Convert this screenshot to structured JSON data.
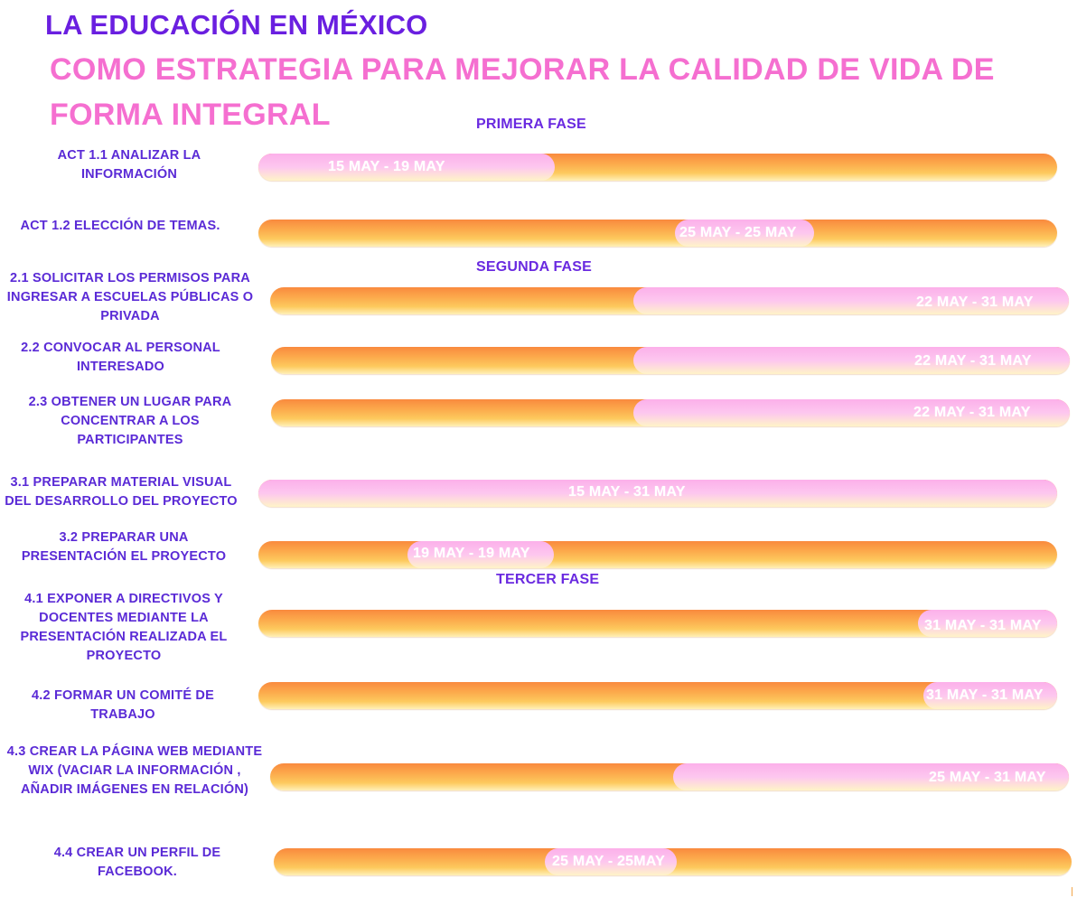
{
  "title": "LA EDUCACIÓN EN MÉXICO",
  "subtitle": "COMO ESTRATEGIA PARA MEJORAR LA CALIDAD DE VIDA DE FORMA INTEGRAL",
  "phases": {
    "first": "PRIMERA FASE",
    "second": "SEGUNDA FASE",
    "third": "TERCER FASE"
  },
  "colors": {
    "title": "#6a1fe0",
    "subtitle": "#f56fd0",
    "bar_orange": "#fcab4c",
    "bar_pink": "#fcb0ea"
  },
  "activities": [
    {
      "label": "ACT 1.1 ANALIZAR LA INFORMACIÓN",
      "dates": "15 MAY - 19 MAY",
      "start": "15 MAY",
      "end": "19 MAY"
    },
    {
      "label": "ACT 1.2 ELECCIÓN DE TEMAS.",
      "dates": "25 MAY - 25 MAY",
      "start": "25 MAY",
      "end": "25 MAY"
    },
    {
      "label": "2.1 SOLICITAR LOS PERMISOS PARA INGRESAR A ESCUELAS PÚBLICAS O PRIVADA",
      "dates": "22 MAY - 31 MAY",
      "start": "22 MAY",
      "end": "31 MAY"
    },
    {
      "label": "2.2 CONVOCAR AL PERSONAL INTERESADO",
      "dates": "22 MAY - 31 MAY",
      "start": "22 MAY",
      "end": "31 MAY"
    },
    {
      "label": "2.3 OBTENER UN LUGAR PARA CONCENTRAR A LOS PARTICIPANTES",
      "dates": "22 MAY - 31 MAY",
      "start": "22 MAY",
      "end": "31 MAY"
    },
    {
      "label": "3.1 PREPARAR  MATERIAL VISUAL DEL DESARROLLO DEL PROYECTO",
      "dates": "15 MAY - 31 MAY",
      "start": "15 MAY",
      "end": "31 MAY"
    },
    {
      "label": "3.2 PREPARAR UNA PRESENTACIÓN EL PROYECTO",
      "dates": "19 MAY - 19 MAY",
      "start": "19 MAY",
      "end": "19 MAY"
    },
    {
      "label": "4.1 EXPONER A DIRECTIVOS Y DOCENTES MEDIANTE LA PRESENTACIÓN REALIZADA EL PROYECTO",
      "dates": "31 MAY - 31 MAY",
      "start": "31 MAY",
      "end": "31 MAY"
    },
    {
      "label": "4.2 FORMAR UN COMITÉ DE TRABAJO",
      "dates": "31 MAY - 31 MAY",
      "start": "31 MAY",
      "end": "31 MAY"
    },
    {
      "label": "4.3 CREAR LA PÁGINA WEB MEDIANTE WIX (VACIAR LA INFORMACIÓN , AÑADIR IMÁGENES EN RELACIÓN)",
      "dates": "25 MAY - 31 MAY",
      "start": "25 MAY",
      "end": "31 MAY"
    },
    {
      "label": "4.4 CREAR UN PERFIL DE FACEBOOK.",
      "dates": "25 MAY - 25MAY",
      "start": "25 MAY",
      "end": "25 MAY"
    }
  ]
}
